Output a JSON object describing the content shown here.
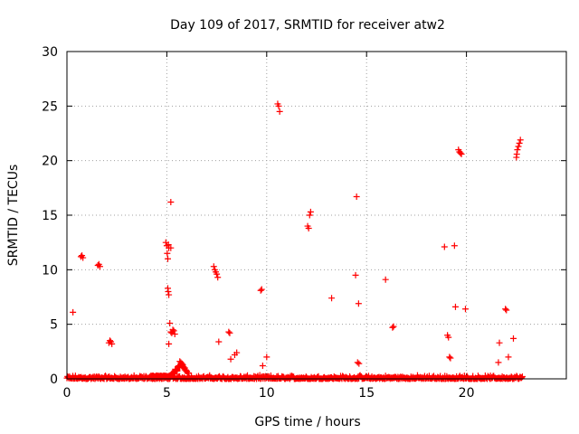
{
  "chart_data": {
    "type": "scatter",
    "title": "Day 109 of 2017, SRMTID for receiver atw2",
    "xlabel": "GPS time / hours",
    "ylabel": "SRMTID / TECUs",
    "xlim": [
      0,
      25
    ],
    "ylim": [
      0,
      30
    ],
    "xticks": [
      0,
      5,
      10,
      15,
      20
    ],
    "yticks": [
      0,
      5,
      10,
      15,
      20,
      25,
      30
    ],
    "grid": true,
    "legend": "none",
    "marker": "plus",
    "color": "#ff0000",
    "series": [
      {
        "points": [
          [
            0.3,
            6.1
          ],
          [
            0.7,
            11.2
          ],
          [
            0.75,
            11.3
          ],
          [
            0.8,
            11.1
          ],
          [
            1.55,
            10.4
          ],
          [
            1.6,
            10.5
          ],
          [
            1.65,
            10.3
          ],
          [
            2.1,
            3.3
          ],
          [
            2.15,
            3.5
          ],
          [
            2.2,
            3.4
          ],
          [
            2.25,
            3.2
          ],
          [
            4.95,
            12.5
          ],
          [
            5.0,
            12.2
          ],
          [
            5.02,
            11.5
          ],
          [
            5.05,
            11.0
          ],
          [
            5.08,
            12.3
          ],
          [
            5.1,
            12.0
          ],
          [
            5.2,
            12.0
          ],
          [
            5.05,
            8.3
          ],
          [
            5.07,
            8.0
          ],
          [
            5.1,
            7.7
          ],
          [
            5.2,
            16.2
          ],
          [
            5.15,
            5.1
          ],
          [
            5.2,
            4.3
          ],
          [
            5.25,
            4.2
          ],
          [
            5.3,
            4.5
          ],
          [
            5.35,
            4.4
          ],
          [
            5.4,
            4.1
          ],
          [
            5.1,
            3.2
          ],
          [
            7.35,
            10.3
          ],
          [
            7.4,
            10.0
          ],
          [
            7.45,
            9.8
          ],
          [
            7.5,
            9.6
          ],
          [
            7.55,
            9.3
          ],
          [
            7.6,
            3.4
          ],
          [
            8.1,
            4.3
          ],
          [
            8.15,
            4.2
          ],
          [
            8.2,
            1.8
          ],
          [
            8.4,
            2.2
          ],
          [
            8.5,
            2.4
          ],
          [
            9.7,
            8.1
          ],
          [
            9.75,
            8.2
          ],
          [
            9.8,
            1.2
          ],
          [
            10.0,
            2.0
          ],
          [
            10.55,
            25.2
          ],
          [
            10.6,
            25.0
          ],
          [
            10.65,
            24.5
          ],
          [
            12.05,
            14.0
          ],
          [
            12.1,
            13.8
          ],
          [
            12.15,
            15.0
          ],
          [
            12.2,
            15.3
          ],
          [
            13.25,
            7.4
          ],
          [
            14.45,
            9.5
          ],
          [
            14.5,
            16.7
          ],
          [
            14.55,
            1.5
          ],
          [
            14.6,
            6.9
          ],
          [
            14.62,
            1.4
          ],
          [
            15.95,
            9.1
          ],
          [
            16.3,
            4.7
          ],
          [
            16.35,
            4.8
          ],
          [
            18.9,
            12.1
          ],
          [
            19.05,
            4.0
          ],
          [
            19.1,
            3.8
          ],
          [
            19.15,
            2.0
          ],
          [
            19.2,
            1.9
          ],
          [
            19.4,
            12.2
          ],
          [
            19.45,
            6.6
          ],
          [
            19.6,
            21.0
          ],
          [
            19.65,
            20.8
          ],
          [
            19.7,
            20.7
          ],
          [
            19.75,
            20.6
          ],
          [
            19.95,
            6.4
          ],
          [
            21.6,
            1.5
          ],
          [
            21.65,
            3.3
          ],
          [
            21.95,
            6.4
          ],
          [
            22.0,
            6.3
          ],
          [
            22.1,
            2.0
          ],
          [
            22.35,
            3.7
          ],
          [
            22.5,
            20.3
          ],
          [
            22.52,
            20.6
          ],
          [
            22.55,
            21.0
          ],
          [
            22.6,
            21.3
          ],
          [
            22.65,
            21.6
          ],
          [
            22.7,
            21.9
          ],
          [
            5.5,
            0.8
          ],
          [
            5.6,
            1.2
          ],
          [
            5.7,
            1.5
          ],
          [
            5.8,
            1.3
          ],
          [
            5.9,
            1.0
          ],
          [
            6.0,
            0.7
          ],
          [
            5.65,
            1.6
          ],
          [
            5.75,
            1.4
          ]
        ]
      }
    ],
    "baseline_noise": {
      "x_range": [
        0.0,
        22.8
      ],
      "y_range": [
        0.0,
        0.35
      ]
    }
  }
}
